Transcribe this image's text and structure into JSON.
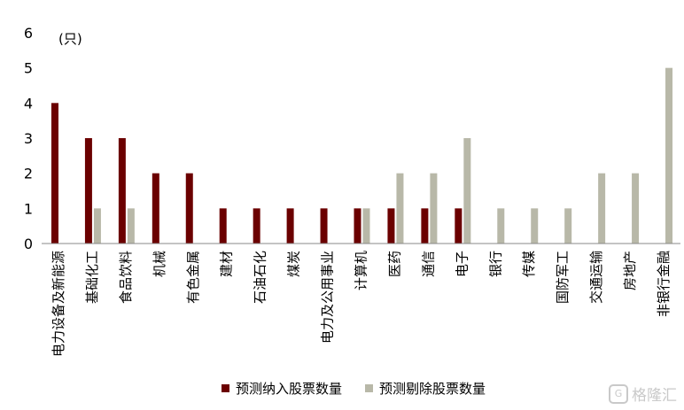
{
  "chart_data": {
    "type": "bar",
    "unit_label": "(只)",
    "ylim": [
      0,
      6
    ],
    "yticks": [
      0,
      1,
      2,
      3,
      4,
      5,
      6
    ],
    "categories": [
      "电力设备及新能源",
      "基础化工",
      "食品饮料",
      "机械",
      "有色金属",
      "建材",
      "石油石化",
      "煤炭",
      "电力及公用事业",
      "计算机",
      "医药",
      "通信",
      "电子",
      "银行",
      "传媒",
      "国防军工",
      "交通运输",
      "房地产",
      "非银行金融"
    ],
    "series": [
      {
        "name": "预测纳入股票数量",
        "color": "#6b0000",
        "values": [
          4,
          3,
          3,
          2,
          2,
          1,
          1,
          1,
          1,
          1,
          1,
          1,
          1,
          0,
          0,
          0,
          0,
          0,
          0
        ]
      },
      {
        "name": "预测剔除股票数量",
        "color": "#b8b8a8",
        "values": [
          0,
          1,
          1,
          0,
          0,
          0,
          0,
          0,
          0,
          1,
          2,
          2,
          3,
          1,
          1,
          1,
          2,
          2,
          5
        ]
      }
    ],
    "grid": false,
    "legend_position": "bottom"
  },
  "watermark": {
    "logo": "G",
    "text": "格隆汇"
  }
}
